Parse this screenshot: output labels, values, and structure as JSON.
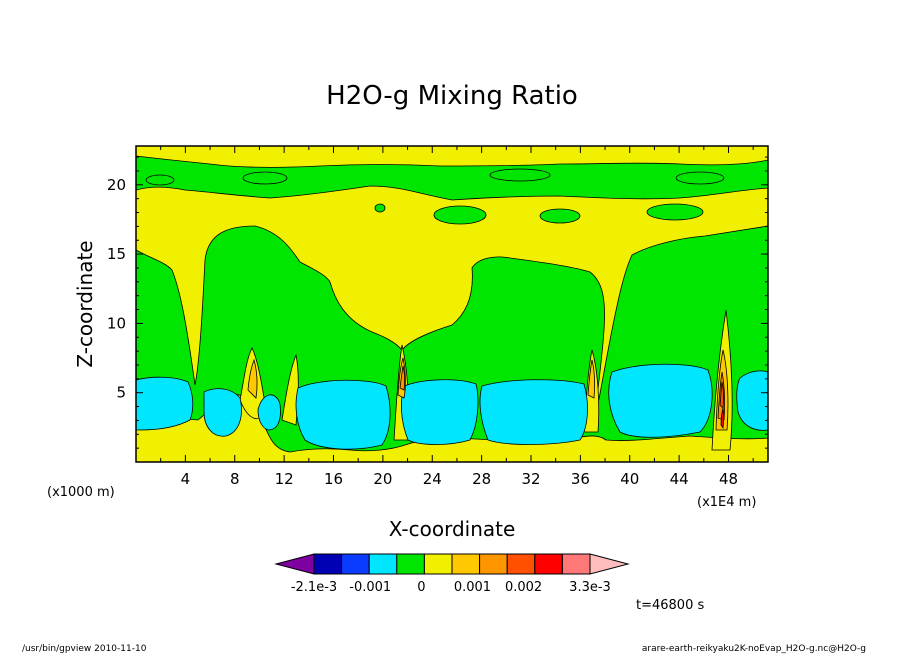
{
  "chart_data": {
    "type": "contour",
    "title": "H2O-g Mixing Ratio",
    "xlabel": "X-coordinate",
    "ylabel": "Z-coordinate",
    "x_unit_left": "(x1000 m)",
    "x_unit_right": "(x1E4 m)",
    "x_ticks": [
      "4",
      "8",
      "12",
      "16",
      "20",
      "24",
      "28",
      "32",
      "36",
      "40",
      "44",
      "48"
    ],
    "x_tick_values": [
      4,
      8,
      12,
      16,
      20,
      24,
      28,
      32,
      36,
      40,
      44,
      48
    ],
    "y_ticks": [
      "5",
      "10",
      "15",
      "20"
    ],
    "y_tick_values": [
      5,
      10,
      15,
      20
    ],
    "xlim": [
      0,
      51.2
    ],
    "ylim": [
      0,
      22.8
    ],
    "colorbar": {
      "labels": [
        "-2.1e-3",
        "-0.001",
        "0",
        "0.001",
        "0.002",
        "3.3e-3"
      ],
      "label_levels": [
        -0.0021,
        -0.001,
        0,
        0.001,
        0.002,
        0.0033
      ],
      "colors": [
        "#7f00a0",
        "#0000b4",
        "#0a3cff",
        "#00e6ff",
        "#00e600",
        "#f0f000",
        "#ffc800",
        "#ff9600",
        "#ff5000",
        "#ff0000",
        "#ff7878",
        "#ffbebe"
      ]
    },
    "time_label": "t=46800 s"
  },
  "footer": {
    "left": "/usr/bin/gpview   2010-11-10",
    "right": "arare-earth-reikyaku2K-noEvap_H2O-g.nc@H2O-g"
  }
}
